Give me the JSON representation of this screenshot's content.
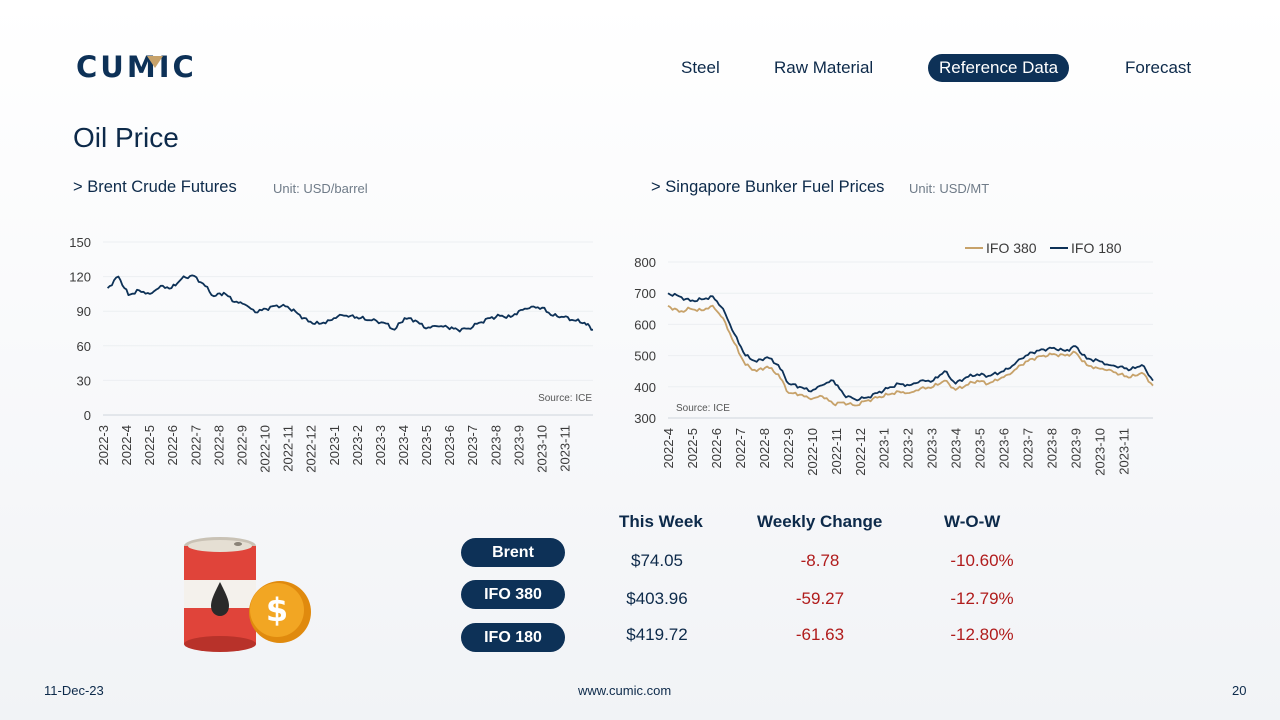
{
  "brand": {
    "logo_text": "CUMIC",
    "accent_color": "#0d3157",
    "logo_accent": "#c7a26a"
  },
  "nav": [
    {
      "label": "Steel",
      "active": false
    },
    {
      "label": "Raw Material",
      "active": false
    },
    {
      "label": "Reference Data",
      "active": true
    },
    {
      "label": "Forecast",
      "active": false
    }
  ],
  "page_title": "Oil Price",
  "brent_section": {
    "title": "> Brent Crude Futures",
    "unit": "Unit: USD/barrel",
    "source": "Source: ICE"
  },
  "bunker_section": {
    "title": "> Singapore Bunker Fuel Prices",
    "unit": "Unit: USD/MT",
    "source": "Source: ICE"
  },
  "chart_data": [
    {
      "type": "line",
      "title": "> Brent Crude Futures",
      "ylabel": "Unit: USD/barrel",
      "ylim": [
        0,
        150
      ],
      "y_ticks": [
        0,
        30,
        60,
        90,
        120,
        150
      ],
      "grid": true,
      "x_tick_labels": [
        "2022-3",
        "2022-4",
        "2022-5",
        "2022-6",
        "2022-7",
        "2022-8",
        "2022-9",
        "2022-10",
        "2022-11",
        "2022-12",
        "2023-1",
        "2023-2",
        "2023-3",
        "2023-4",
        "2023-5",
        "2023-6",
        "2023-7",
        "2023-8",
        "2023-9",
        "2023-10",
        "2023-11"
      ],
      "x": [
        "2022-03-07",
        "2022-03-21",
        "2022-04-04",
        "2022-04-18",
        "2022-05-02",
        "2022-05-16",
        "2022-05-30",
        "2022-06-13",
        "2022-06-27",
        "2022-07-11",
        "2022-07-25",
        "2022-08-08",
        "2022-08-22",
        "2022-09-05",
        "2022-09-19",
        "2022-10-03",
        "2022-10-17",
        "2022-10-31",
        "2022-11-14",
        "2022-11-28",
        "2022-12-12",
        "2022-12-26",
        "2023-01-09",
        "2023-01-23",
        "2023-02-06",
        "2023-02-20",
        "2023-03-06",
        "2023-03-20",
        "2023-04-03",
        "2023-04-17",
        "2023-05-01",
        "2023-05-15",
        "2023-05-29",
        "2023-06-12",
        "2023-06-26",
        "2023-07-10",
        "2023-07-24",
        "2023-08-07",
        "2023-08-21",
        "2023-09-04",
        "2023-09-18",
        "2023-10-02",
        "2023-10-16",
        "2023-10-30",
        "2023-11-13",
        "2023-11-27",
        "2023-12-08"
      ],
      "series": [
        {
          "color": "#0d3157",
          "values": [
            110,
            120,
            104,
            108,
            105,
            112,
            110,
            118,
            121,
            114,
            103,
            106,
            98,
            96,
            89,
            92,
            95,
            94,
            88,
            81,
            79,
            82,
            87,
            86,
            84,
            82,
            80,
            74,
            84,
            82,
            75,
            77,
            76,
            74,
            75,
            80,
            84,
            86,
            85,
            91,
            94,
            93,
            86,
            85,
            82,
            80,
            74
          ]
        }
      ]
    },
    {
      "type": "line",
      "title": "> Singapore Bunker Fuel Prices",
      "ylabel": "Unit: USD/MT",
      "ylim": [
        300,
        800
      ],
      "y_ticks": [
        300,
        400,
        500,
        600,
        700,
        800
      ],
      "grid": true,
      "legend_position": "top-right",
      "x_tick_labels": [
        "2022-4",
        "2022-5",
        "2022-6",
        "2022-7",
        "2022-8",
        "2022-9",
        "2022-10",
        "2022-11",
        "2022-12",
        "2023-1",
        "2023-2",
        "2023-3",
        "2023-4",
        "2023-5",
        "2023-6",
        "2023-7",
        "2023-8",
        "2023-9",
        "2023-10",
        "2023-11"
      ],
      "x": [
        "2022-04-01",
        "2022-04-15",
        "2022-04-29",
        "2022-05-13",
        "2022-05-27",
        "2022-06-10",
        "2022-06-24",
        "2022-07-08",
        "2022-07-22",
        "2022-08-05",
        "2022-08-19",
        "2022-09-02",
        "2022-09-16",
        "2022-09-30",
        "2022-10-14",
        "2022-10-28",
        "2022-11-11",
        "2022-11-25",
        "2022-12-09",
        "2022-12-23",
        "2023-01-06",
        "2023-01-20",
        "2023-02-03",
        "2023-02-17",
        "2023-03-03",
        "2023-03-17",
        "2023-03-31",
        "2023-04-14",
        "2023-04-28",
        "2023-05-12",
        "2023-05-26",
        "2023-06-09",
        "2023-06-23",
        "2023-07-07",
        "2023-07-21",
        "2023-08-04",
        "2023-08-18",
        "2023-09-01",
        "2023-09-15",
        "2023-09-29",
        "2023-10-13",
        "2023-10-27",
        "2023-11-10",
        "2023-11-24",
        "2023-12-08"
      ],
      "series": [
        {
          "name": "IFO 380",
          "color": "#c7a26a",
          "values": [
            660,
            640,
            650,
            645,
            660,
            620,
            540,
            470,
            450,
            465,
            440,
            380,
            375,
            360,
            370,
            345,
            350,
            340,
            355,
            365,
            375,
            385,
            380,
            395,
            400,
            420,
            390,
            405,
            420,
            410,
            425,
            440,
            470,
            490,
            500,
            505,
            500,
            510,
            470,
            460,
            455,
            440,
            430,
            445,
            404
          ]
        },
        {
          "name": "IFO 180",
          "color": "#0d3157",
          "values": [
            700,
            690,
            675,
            680,
            690,
            650,
            570,
            500,
            480,
            495,
            470,
            410,
            400,
            385,
            405,
            420,
            375,
            360,
            365,
            380,
            395,
            410,
            405,
            420,
            420,
            450,
            410,
            430,
            440,
            435,
            445,
            460,
            490,
            510,
            520,
            525,
            515,
            530,
            490,
            485,
            470,
            465,
            455,
            470,
            420
          ]
        }
      ]
    }
  ],
  "table": {
    "headers": [
      "This Week",
      "Weekly Change",
      "W-O-W"
    ],
    "rows": [
      {
        "name": "Brent",
        "price": "$74.05",
        "change": "-8.78",
        "wow": "-10.60%"
      },
      {
        "name": "IFO 380",
        "price": "$403.96",
        "change": "-59.27",
        "wow": "-12.79%"
      },
      {
        "name": "IFO 180",
        "price": "$419.72",
        "change": "-61.63",
        "wow": "-12.80%"
      }
    ]
  },
  "footer": {
    "date": "11-Dec-23",
    "website": "www.cumic.com",
    "page_number": "20"
  },
  "colors": {
    "negative": "#b01c1c",
    "barrel_red": "#e0443a",
    "coin_gold": "#f2a623"
  },
  "illustration": {
    "icon": "oil-barrel-coin-icon",
    "coin_symbol": "$"
  }
}
